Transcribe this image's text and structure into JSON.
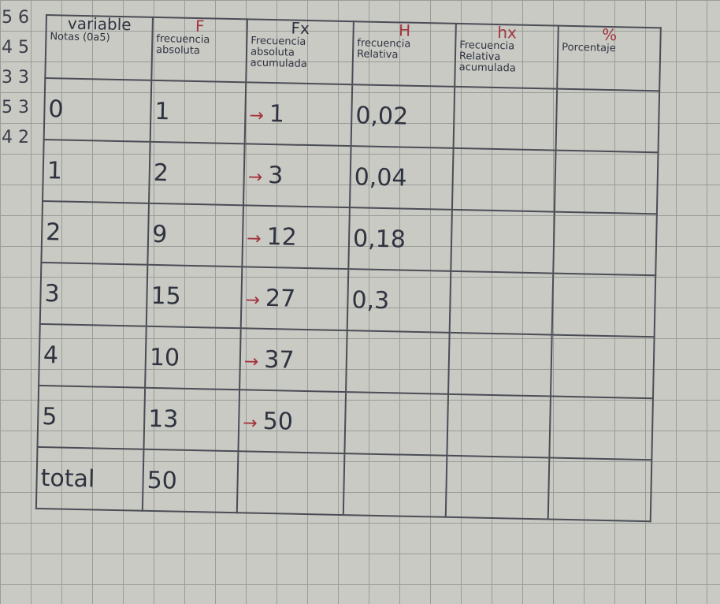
{
  "margin_notes": [
    "5 6",
    "4 5",
    "3 3",
    "5 3",
    "4 2"
  ],
  "headers": [
    {
      "code": "variable",
      "label": "Notas (0a5)"
    },
    {
      "code": "F",
      "label": "frecuencia absoluta"
    },
    {
      "code": "Fx",
      "label": "Frecuencia absoluta acumulada"
    },
    {
      "code": "H",
      "label": "frecuencia Relativa"
    },
    {
      "code": "hx",
      "label": "Frecuencia Relativa acumulada"
    },
    {
      "code": "%",
      "label": "Porcentaje"
    }
  ],
  "rows": [
    {
      "x": "0",
      "f": "1",
      "fx": "1",
      "h": "0,02"
    },
    {
      "x": "1",
      "f": "2",
      "fx": "3",
      "h": "0,04"
    },
    {
      "x": "2",
      "f": "9",
      "fx": "12",
      "h": "0,18"
    },
    {
      "x": "3",
      "f": "15",
      "fx": "27",
      "h": "0,3"
    },
    {
      "x": "4",
      "f": "10",
      "fx": "37",
      "h": ""
    },
    {
      "x": "5",
      "f": "13",
      "fx": "50",
      "h": ""
    }
  ],
  "total": {
    "label": "total",
    "f": "50"
  },
  "colors": {
    "ink": "#2f3340",
    "red_ink": "#a3333e",
    "paper": "#c9cac4"
  }
}
